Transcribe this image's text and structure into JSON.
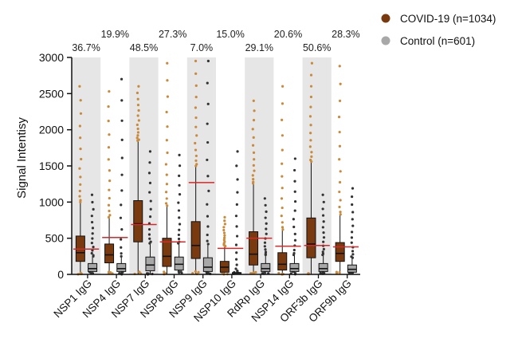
{
  "chart_data": {
    "type": "box",
    "ylabel": "Signal Intentisy",
    "ylim": [
      0,
      3000
    ],
    "yticks": [
      "0",
      "500",
      "1000",
      "1500",
      "2000",
      "2500",
      "3000"
    ],
    "yticks_values": [
      0,
      500,
      1000,
      1500,
      2000,
      2500,
      3000
    ],
    "categories": [
      "NSP1 IgG",
      "NSP4 IgG",
      "NSP7 IgG",
      "NSP8 IgG",
      "NSP9 IgG",
      "NSP10 IgG",
      "RdRp IgG",
      "NSP14 IgG",
      "ORF3b IgG",
      "ORF9b IgG"
    ],
    "percent_labels": [
      "36.7%",
      "19.9%",
      "48.5%",
      "27.3%",
      "7.0%",
      "15.0%",
      "29.1%",
      "20.6%",
      "50.6%",
      "28.3%"
    ],
    "cutoffs": [
      350,
      510,
      690,
      450,
      1270,
      360,
      500,
      390,
      400,
      380
    ],
    "legend": {
      "position": "top-right",
      "entries": [
        {
          "label": "COVID-19 (n=1034)",
          "color": "#7a3a10"
        },
        {
          "label": "Control (n=601)",
          "color": "#a8a8a8"
        }
      ]
    },
    "series": [
      {
        "name": "COVID-19 (n=1034)",
        "color": "#7a3a10",
        "outlier_color": "#c98a3c",
        "boxes": [
          {
            "min": 0,
            "q1": 180,
            "median": 300,
            "q3": 530,
            "max": 1000
          },
          {
            "min": 0,
            "q1": 160,
            "median": 270,
            "q3": 420,
            "max": 790
          },
          {
            "min": 0,
            "q1": 450,
            "median": 700,
            "q3": 1020,
            "max": 1850
          },
          {
            "min": 0,
            "q1": 110,
            "median": 250,
            "q3": 500,
            "max": 950
          },
          {
            "min": 0,
            "q1": 220,
            "median": 400,
            "q3": 730,
            "max": 1500
          },
          {
            "min": 0,
            "q1": 30,
            "median": 100,
            "q3": 180,
            "max": 390
          },
          {
            "min": 0,
            "q1": 130,
            "median": 280,
            "q3": 590,
            "max": 1260
          },
          {
            "min": 0,
            "q1": 60,
            "median": 140,
            "q3": 300,
            "max": 620
          },
          {
            "min": 0,
            "q1": 230,
            "median": 420,
            "q3": 780,
            "max": 1560
          },
          {
            "min": 0,
            "q1": 180,
            "median": 290,
            "q3": 440,
            "max": 830
          }
        ],
        "outliers_max": [
          2600,
          2530,
          2600,
          2920,
          2950,
          790,
          2400,
          2600,
          2920,
          2880
        ]
      },
      {
        "name": "Control (n=601)",
        "color": "#a8a8a8",
        "outlier_color": "#333333",
        "boxes": [
          {
            "min": 0,
            "q1": 40,
            "median": 80,
            "q3": 150,
            "max": 250
          },
          {
            "min": 0,
            "q1": 40,
            "median": 80,
            "q3": 150,
            "max": 250
          },
          {
            "min": 0,
            "q1": 50,
            "median": 130,
            "q3": 240,
            "max": 430
          },
          {
            "min": 0,
            "q1": 60,
            "median": 140,
            "q3": 240,
            "max": 430
          },
          {
            "min": 0,
            "q1": 40,
            "median": 100,
            "q3": 230,
            "max": 420
          },
          {
            "min": 0,
            "q1": 5,
            "median": 10,
            "q3": 25,
            "max": 50
          },
          {
            "min": 0,
            "q1": 40,
            "median": 80,
            "q3": 150,
            "max": 270
          },
          {
            "min": 0,
            "q1": 40,
            "median": 80,
            "q3": 150,
            "max": 270
          },
          {
            "min": 0,
            "q1": 40,
            "median": 80,
            "q3": 150,
            "max": 270
          },
          {
            "min": 0,
            "q1": 30,
            "median": 70,
            "q3": 130,
            "max": 230
          }
        ],
        "outliers_max": [
          1100,
          2700,
          1700,
          1650,
          2950,
          1700,
          1050,
          1600,
          1100,
          1190
        ]
      }
    ]
  }
}
